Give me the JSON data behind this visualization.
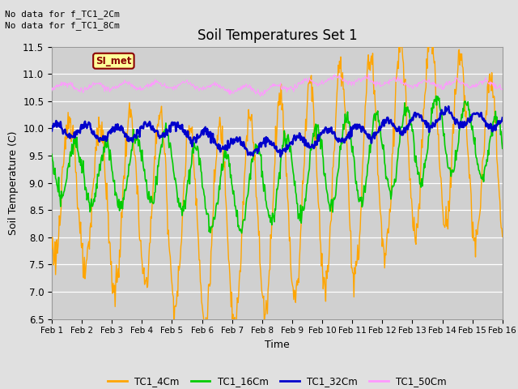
{
  "title": "Soil Temperatures Set 1",
  "xlabel": "Time",
  "ylabel": "Soil Temperature (C)",
  "ylim": [
    6.5,
    11.5
  ],
  "yticks": [
    6.5,
    7.0,
    7.5,
    8.0,
    8.5,
    9.0,
    9.5,
    10.0,
    10.5,
    11.0,
    11.5
  ],
  "xtick_labels": [
    "Feb 1",
    "Feb 2",
    "Feb 3",
    "Feb 4",
    "Feb 5",
    "Feb 6",
    "Feb 7",
    "Feb 8",
    "Feb 9",
    "Feb 10",
    "Feb 11",
    "Feb 12",
    "Feb 13",
    "Feb 14",
    "Feb 15",
    "Feb 16"
  ],
  "background_color": "#e0e0e0",
  "plot_bg_color": "#d0d0d0",
  "no_data_text1": "No data for f_TC1_2Cm",
  "no_data_text2": "No data for f_TC1_8Cm",
  "si_met_label": "SI_met",
  "legend_labels": [
    "TC1_4Cm",
    "TC1_16Cm",
    "TC1_32Cm",
    "TC1_50Cm"
  ],
  "colors": {
    "TC1_4Cm": "#FFA500",
    "TC1_16Cm": "#00CC00",
    "TC1_32Cm": "#0000CC",
    "TC1_50Cm": "#FF99FF"
  },
  "linewidths": {
    "TC1_4Cm": 1.0,
    "TC1_16Cm": 1.2,
    "TC1_32Cm": 1.8,
    "TC1_50Cm": 0.8
  },
  "figsize": [
    6.4,
    4.8
  ],
  "dpi": 100
}
